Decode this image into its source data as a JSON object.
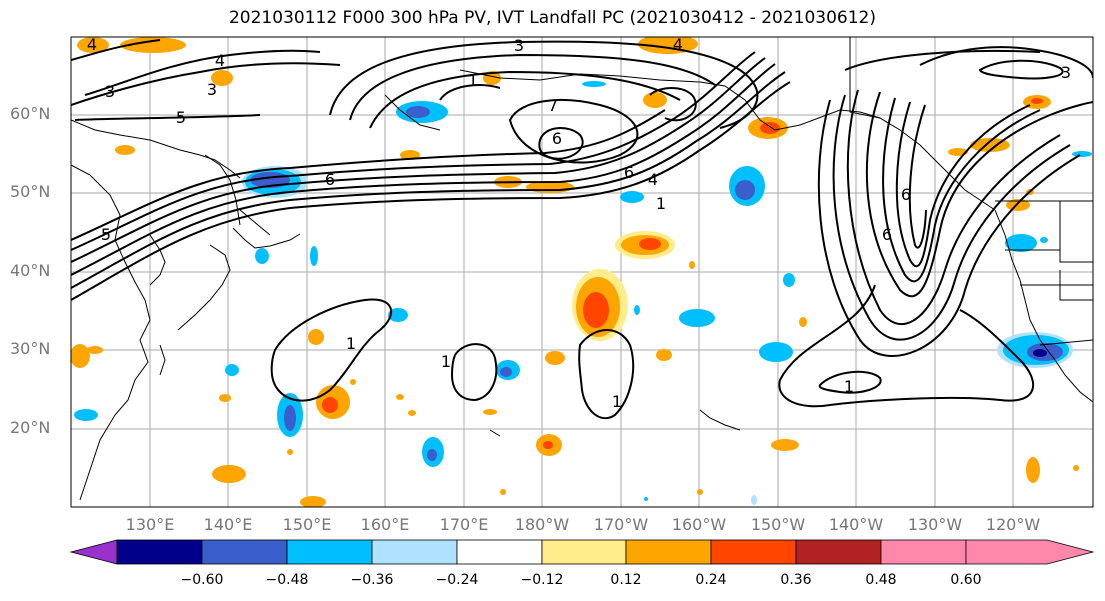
{
  "title": "2021030112 F000 300 hPa PV, IVT Landfall PC (2021030412 - 2021030612)",
  "lat_labels": [
    "60°N",
    "50°N",
    "40°N",
    "30°N",
    "20°N"
  ],
  "lon_labels": [
    "130°E",
    "140°E",
    "150°E",
    "160°E",
    "170°E",
    "180°W",
    "170°W",
    "160°W",
    "150°W",
    "140°W",
    "130°W",
    "120°W"
  ],
  "colorbar": {
    "ticks": [
      "−0.60",
      "−0.48",
      "−0.36",
      "−0.24",
      "−0.12",
      "0.12",
      "0.24",
      "0.36",
      "0.48",
      "0.60"
    ],
    "colors": [
      "#9932cc",
      "#00008b",
      "#3a5fcd",
      "#00bfff",
      "#b0e2ff",
      "#ffffff",
      "#ffec8b",
      "#ffa500",
      "#ff4500",
      "#b22222",
      "#ff88aa"
    ]
  },
  "contour_labels": [
    "3",
    "4",
    "3",
    "5",
    "6",
    "5",
    "4",
    "3",
    "1",
    "7",
    "6",
    "6",
    "4",
    "1",
    "1",
    "1",
    "1",
    "1",
    "4",
    "3",
    "6",
    "6"
  ],
  "fill_colors": {
    "orange": "#ffa500",
    "red": "#ff4500",
    "yellow": "#ffec8b",
    "cyan": "#00bfff",
    "light_blue": "#b0e2ff",
    "blue": "#3a5fcd",
    "navy": "#00008b"
  }
}
